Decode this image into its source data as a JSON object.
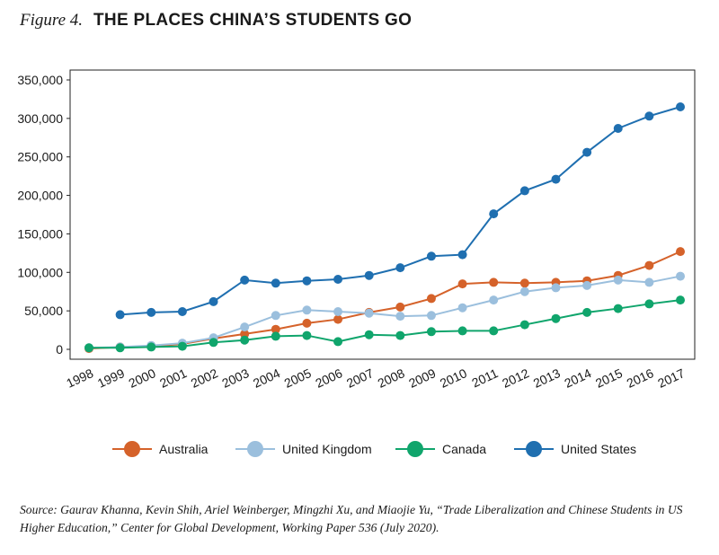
{
  "figure": {
    "label": "Figure 4.",
    "title": "THE PLACES CHINA’S STUDENTS GO",
    "source": "Source: Gaurav Khanna, Kevin Shih, Ariel Weinberger, Mingzhi Xu, and Miaojie Yu, “Trade Liberalization and Chinese Students in US Higher Education,” Center for Global Development, Working Paper 536 (July 2020)."
  },
  "chart_data": {
    "type": "line",
    "title": "",
    "xlabel": "",
    "ylabel": "",
    "x": [
      "1998",
      "1999",
      "2000",
      "2001",
      "2002",
      "2003",
      "2004",
      "2005",
      "2006",
      "2007",
      "2008",
      "2009",
      "2010",
      "2011",
      "2012",
      "2013",
      "2014",
      "2015",
      "2016",
      "2017"
    ],
    "yticks": [
      0,
      50000,
      100000,
      150000,
      200000,
      250000,
      300000,
      350000
    ],
    "ytick_labels": [
      "0",
      "50,000",
      "100,000",
      "150,000",
      "200,000",
      "250,000",
      "300,000",
      "350,000"
    ],
    "ylim": [
      0,
      350000
    ],
    "grid": false,
    "legend_position": "bottom",
    "series": [
      {
        "name": "Australia",
        "color": "#d5622a",
        "values": [
          1000,
          3000,
          4000,
          7000,
          14000,
          20000,
          26000,
          34000,
          39000,
          48000,
          55000,
          66000,
          85000,
          87000,
          86000,
          87000,
          89000,
          96000,
          109000,
          127000
        ]
      },
      {
        "name": "United Kingdom",
        "color": "#9bbfdd",
        "values": [
          2000,
          3000,
          5000,
          8000,
          15000,
          29000,
          44000,
          51000,
          49000,
          47000,
          43000,
          44000,
          54000,
          64000,
          75000,
          80000,
          83000,
          90000,
          87000,
          95000
        ]
      },
      {
        "name": "Canada",
        "color": "#10a56c",
        "values": [
          2000,
          2000,
          3000,
          4000,
          9000,
          12000,
          17000,
          18000,
          10000,
          19000,
          18000,
          23000,
          24000,
          24000,
          32000,
          40000,
          48000,
          53000,
          59000,
          64000
        ]
      },
      {
        "name": "United States",
        "color": "#1f6fb0",
        "values": [
          null,
          45000,
          48000,
          49000,
          62000,
          90000,
          86000,
          89000,
          91000,
          96000,
          106000,
          121000,
          123000,
          176000,
          206000,
          221000,
          256000,
          287000,
          303000,
          315000
        ]
      }
    ]
  }
}
